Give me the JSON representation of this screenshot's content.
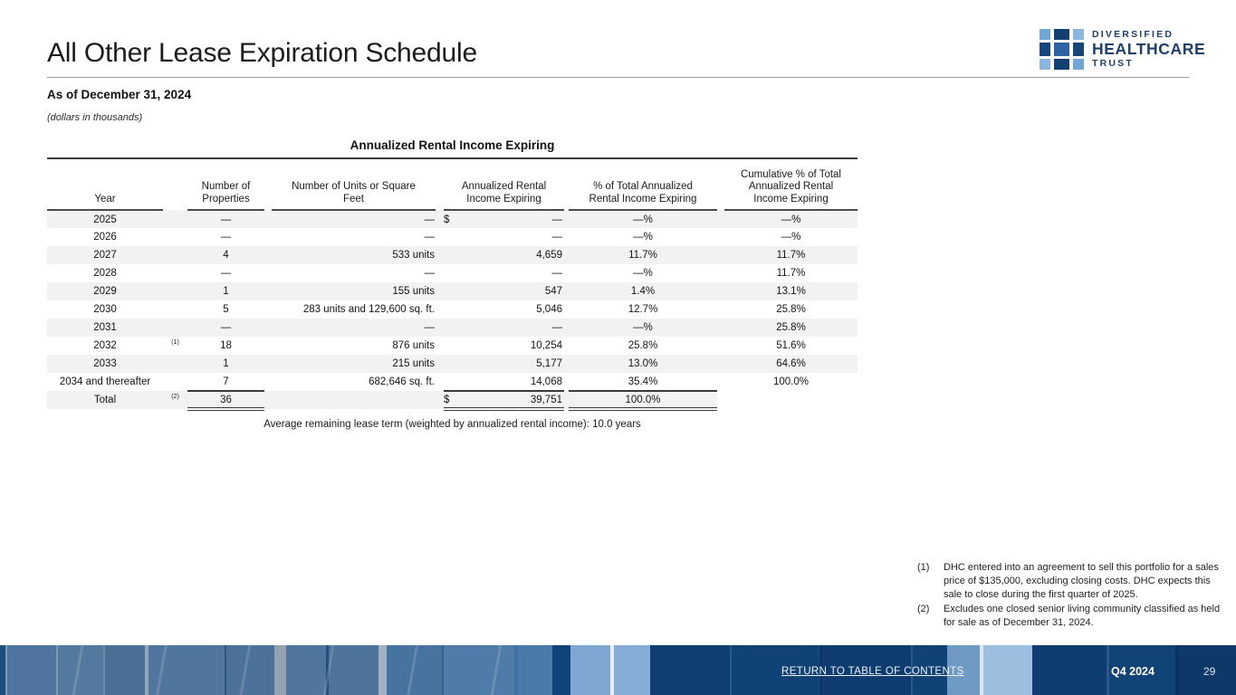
{
  "header": {
    "title": "All Other Lease Expiration Schedule",
    "as_of": "As of December 31, 2024",
    "units_note": "(dollars in thousands)"
  },
  "logo": {
    "line1": "DIVERSIFIED",
    "line2": "HEALTHCARE",
    "line3": "TRUST",
    "square_colors": [
      [
        "#6FA6D4",
        "#123F72",
        "#8AB5DC"
      ],
      [
        "#16467B",
        "#2B64A0",
        "#16467B"
      ],
      [
        "#8AB5DC",
        "#123F72",
        "#6FA6D4"
      ]
    ],
    "text_color": "#1D3F6E"
  },
  "table": {
    "group_header": "Annualized Rental Income Expiring",
    "columns": [
      "Year",
      "Number of\nProperties",
      "Number of Units or Square\nFeet",
      "Annualized Rental\nIncome Expiring",
      "% of Total Annualized\nRental Income Expiring",
      "Cumulative % of Total\nAnnualized Rental\nIncome Expiring"
    ],
    "rows": [
      {
        "year": "2025",
        "fn": "",
        "props": "—",
        "units": "—",
        "dollar": "$",
        "income": "—",
        "pct": "—%",
        "cum": "—%"
      },
      {
        "year": "2026",
        "fn": "",
        "props": "—",
        "units": "—",
        "dollar": "",
        "income": "—",
        "pct": "—%",
        "cum": "—%"
      },
      {
        "year": "2027",
        "fn": "",
        "props": "4",
        "units": "533 units",
        "dollar": "",
        "income": "4,659",
        "pct": "11.7%",
        "cum": "11.7%"
      },
      {
        "year": "2028",
        "fn": "",
        "props": "—",
        "units": "—",
        "dollar": "",
        "income": "—",
        "pct": "—%",
        "cum": "11.7%"
      },
      {
        "year": "2029",
        "fn": "",
        "props": "1",
        "units": "155 units",
        "dollar": "",
        "income": "547",
        "pct": "1.4%",
        "cum": "13.1%"
      },
      {
        "year": "2030",
        "fn": "",
        "props": "5",
        "units": "283 units and 129,600 sq. ft.",
        "dollar": "",
        "income": "5,046",
        "pct": "12.7%",
        "cum": "25.8%"
      },
      {
        "year": "2031",
        "fn": "",
        "props": "—",
        "units": "—",
        "dollar": "",
        "income": "—",
        "pct": "—%",
        "cum": "25.8%"
      },
      {
        "year": "2032",
        "fn": "(1)",
        "props": "18",
        "units": "876 units",
        "dollar": "",
        "income": "10,254",
        "pct": "25.8%",
        "cum": "51.6%"
      },
      {
        "year": "2033",
        "fn": "",
        "props": "1",
        "units": "215 units",
        "dollar": "",
        "income": "5,177",
        "pct": "13.0%",
        "cum": "64.6%"
      },
      {
        "year": "2034 and thereafter",
        "fn": "",
        "props": "7",
        "units": "682,646 sq. ft.",
        "dollar": "",
        "income": "14,068",
        "pct": "35.4%",
        "cum": "100.0%",
        "pre_total": true
      },
      {
        "year": "Total",
        "fn": "(2)",
        "props": "36",
        "units": "",
        "dollar": "$",
        "income": "39,751",
        "pct": "100.0%",
        "cum": "",
        "total": true
      }
    ],
    "avg_note": "Average remaining lease term (weighted by annualized rental income): 10.0 years"
  },
  "footnotes": [
    {
      "marker": "(1)",
      "text": "DHC entered into an agreement to sell this portfolio for a sales price of $135,000, excluding closing costs. DHC expects this sale to close during the first quarter of 2025."
    },
    {
      "marker": "(2)",
      "text": "Excludes one closed senior living community classified as held for sale as of December 31, 2024."
    }
  ],
  "footer": {
    "link": "RETURN TO TABLE OF CONTENTS",
    "quarter": "Q4 2024",
    "page": "29"
  }
}
